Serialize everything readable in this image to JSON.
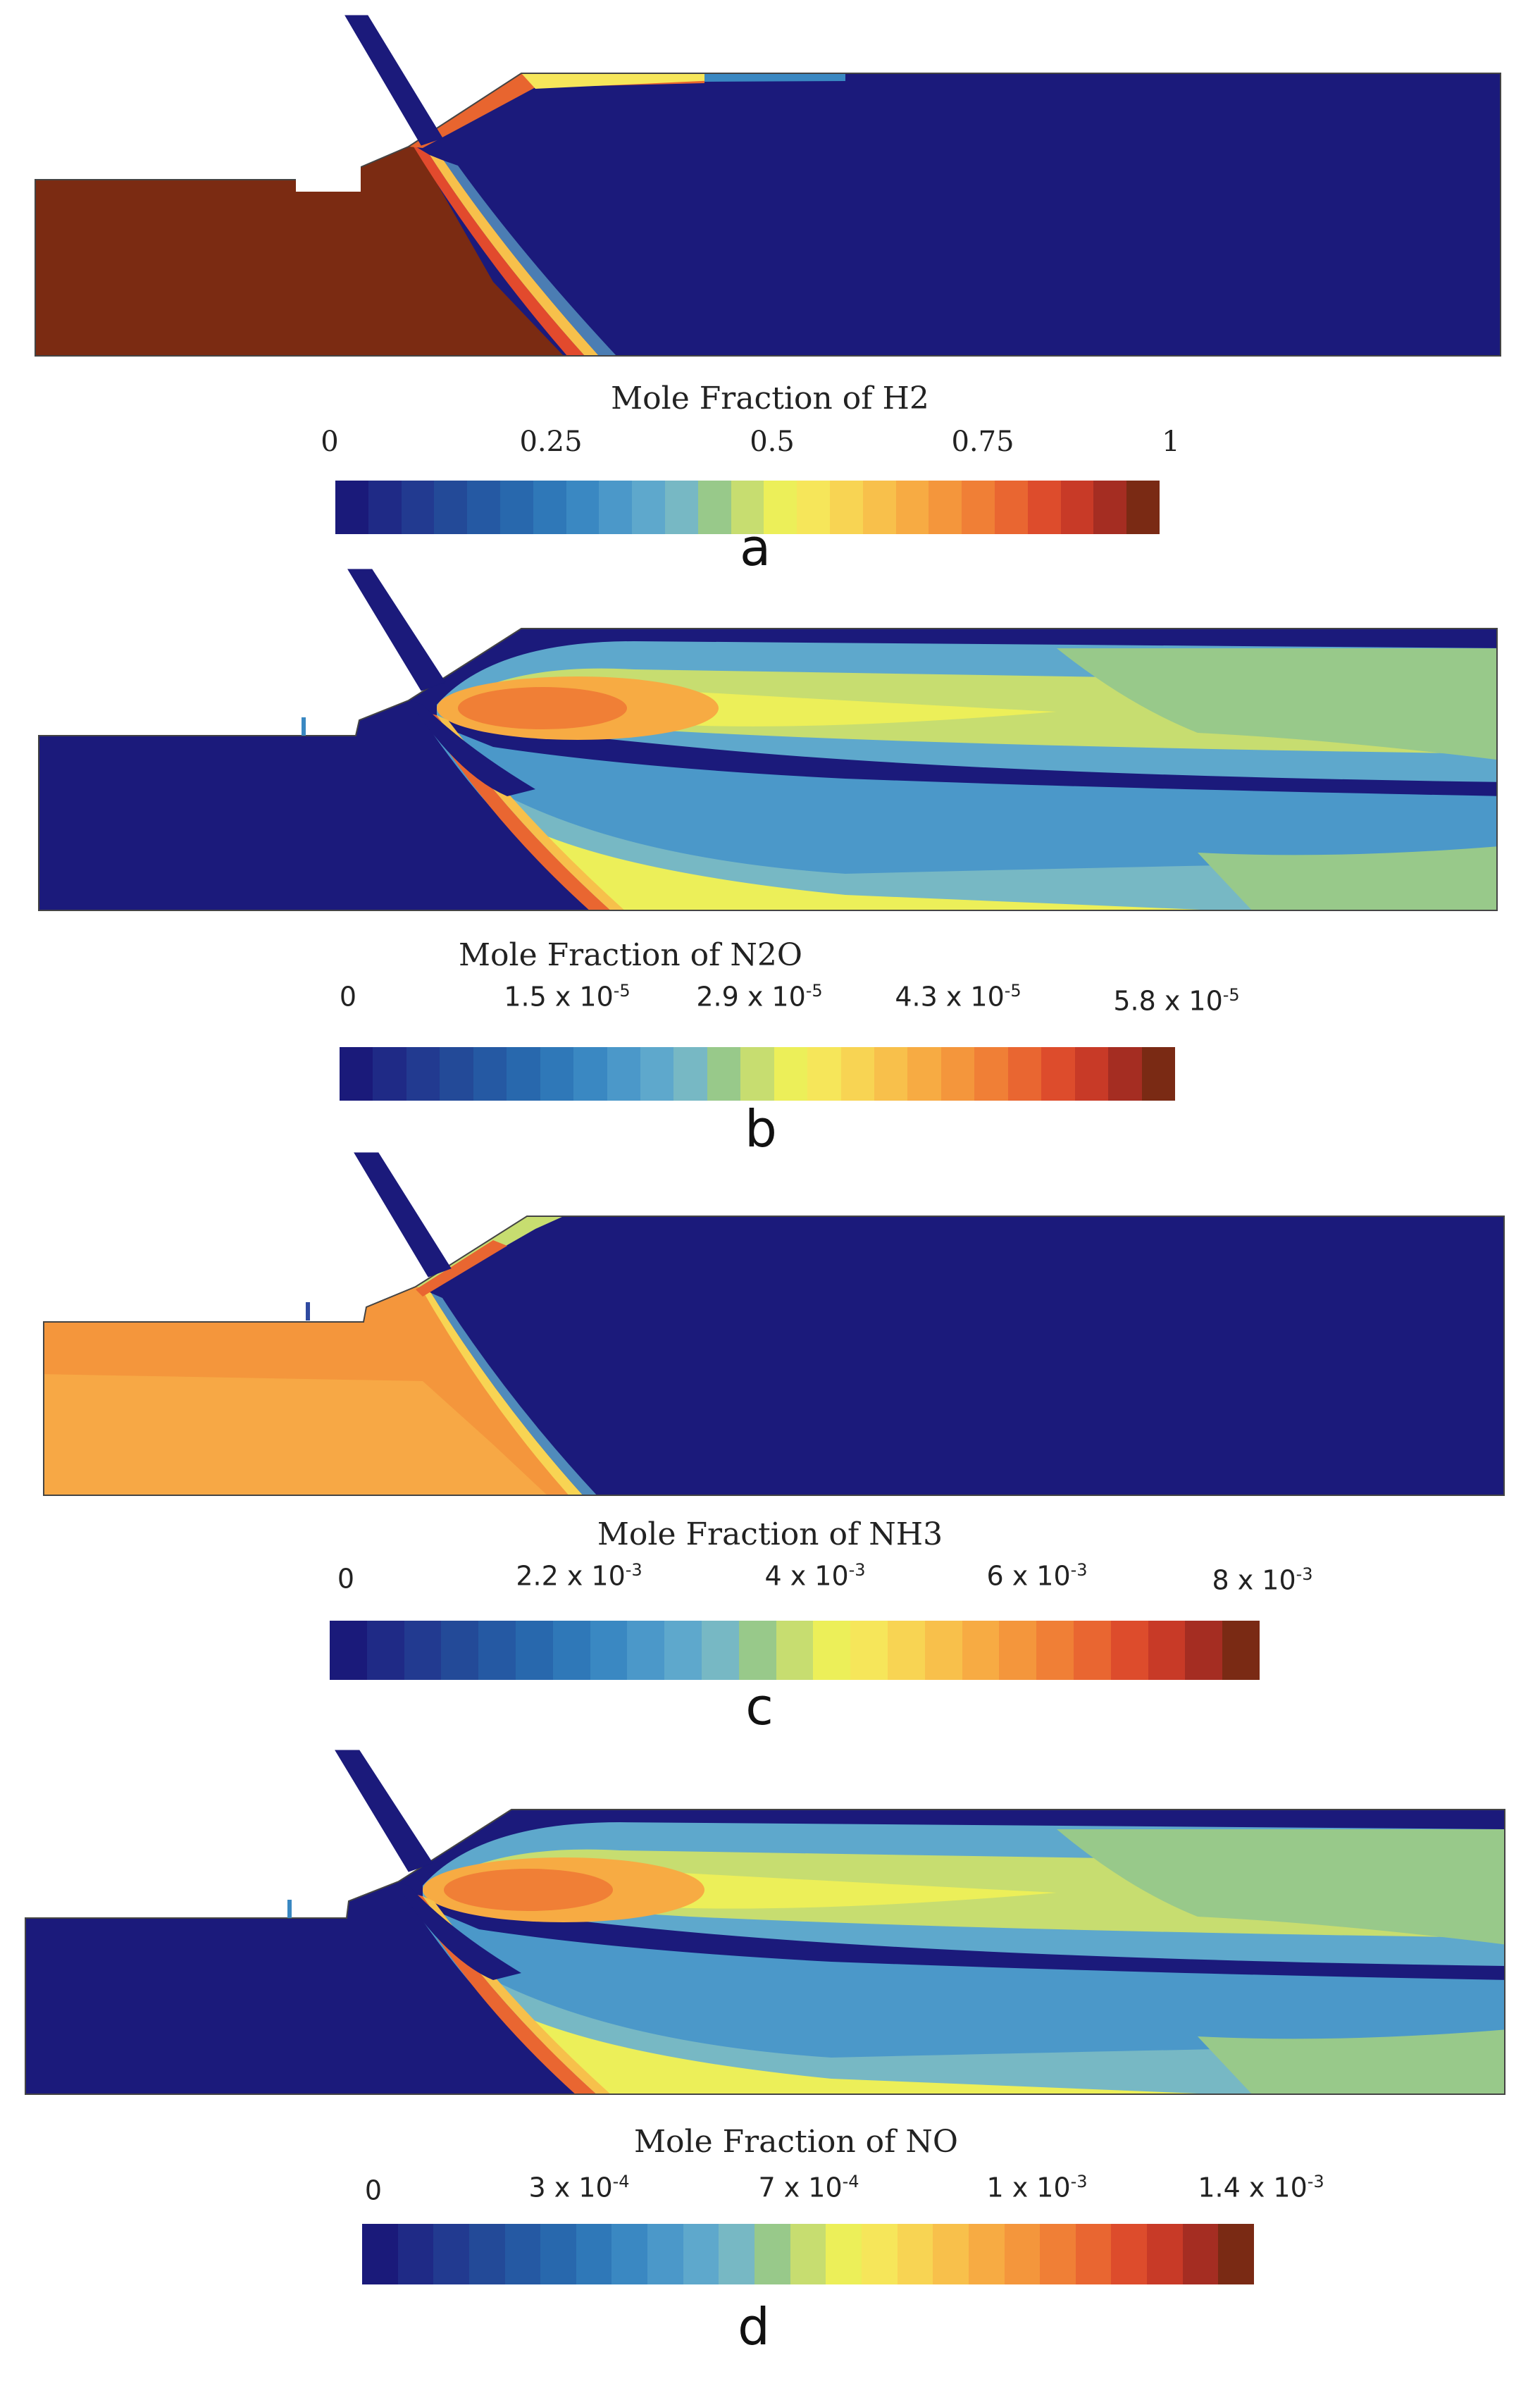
{
  "colormap": [
    "#1a1a7a",
    "#1f2a86",
    "#223a90",
    "#234a98",
    "#2559a3",
    "#2868ad",
    "#2f78b8",
    "#3a88c2",
    "#4b98c9",
    "#5ea8cc",
    "#77b8c4",
    "#98c98a",
    "#c7dd70",
    "#ecef59",
    "#f6e65a",
    "#f8d453",
    "#f8c04b",
    "#f7ab43",
    "#f4963c",
    "#f07f36",
    "#e96631",
    "#dd4c2c",
    "#c83a27",
    "#a52d22",
    "#7a2a14"
  ],
  "panels": [
    {
      "label": "a",
      "title": "Mole Fraction of H2",
      "ticks": [
        {
          "text": "0",
          "exp": ""
        },
        {
          "text": "0.25",
          "exp": ""
        },
        {
          "text": "0.5",
          "exp": ""
        },
        {
          "text": "0.75",
          "exp": ""
        },
        {
          "text": "1",
          "exp": ""
        }
      ]
    },
    {
      "label": "b",
      "title": "Mole Fraction of N2O",
      "ticks": [
        {
          "text": "0",
          "exp": ""
        },
        {
          "text": "1.5  x 10",
          "exp": "-5"
        },
        {
          "text": "2.9  x 10",
          "exp": "-5"
        },
        {
          "text": "4.3 x 10",
          "exp": "-5"
        },
        {
          "text": "5.8 x 10",
          "exp": "-5"
        }
      ]
    },
    {
      "label": "c",
      "title": "Mole Fraction of NH3",
      "ticks": [
        {
          "text": "0",
          "exp": ""
        },
        {
          "text": "2.2 x 10",
          "exp": "-3"
        },
        {
          "text": "4 x 10",
          "exp": "-3"
        },
        {
          "text": "6 x 10",
          "exp": "-3"
        },
        {
          "text": "8 x 10",
          "exp": "-3"
        }
      ]
    },
    {
      "label": "d",
      "title": "Mole Fraction of NO",
      "ticks": [
        {
          "text": "0",
          "exp": ""
        },
        {
          "text": "3  x 10",
          "exp": "-4"
        },
        {
          "text": "7 x 10",
          "exp": "-4"
        },
        {
          "text": "1 x 10",
          "exp": "-3"
        },
        {
          "text": "1.4 x 10",
          "exp": "-3"
        }
      ]
    }
  ]
}
